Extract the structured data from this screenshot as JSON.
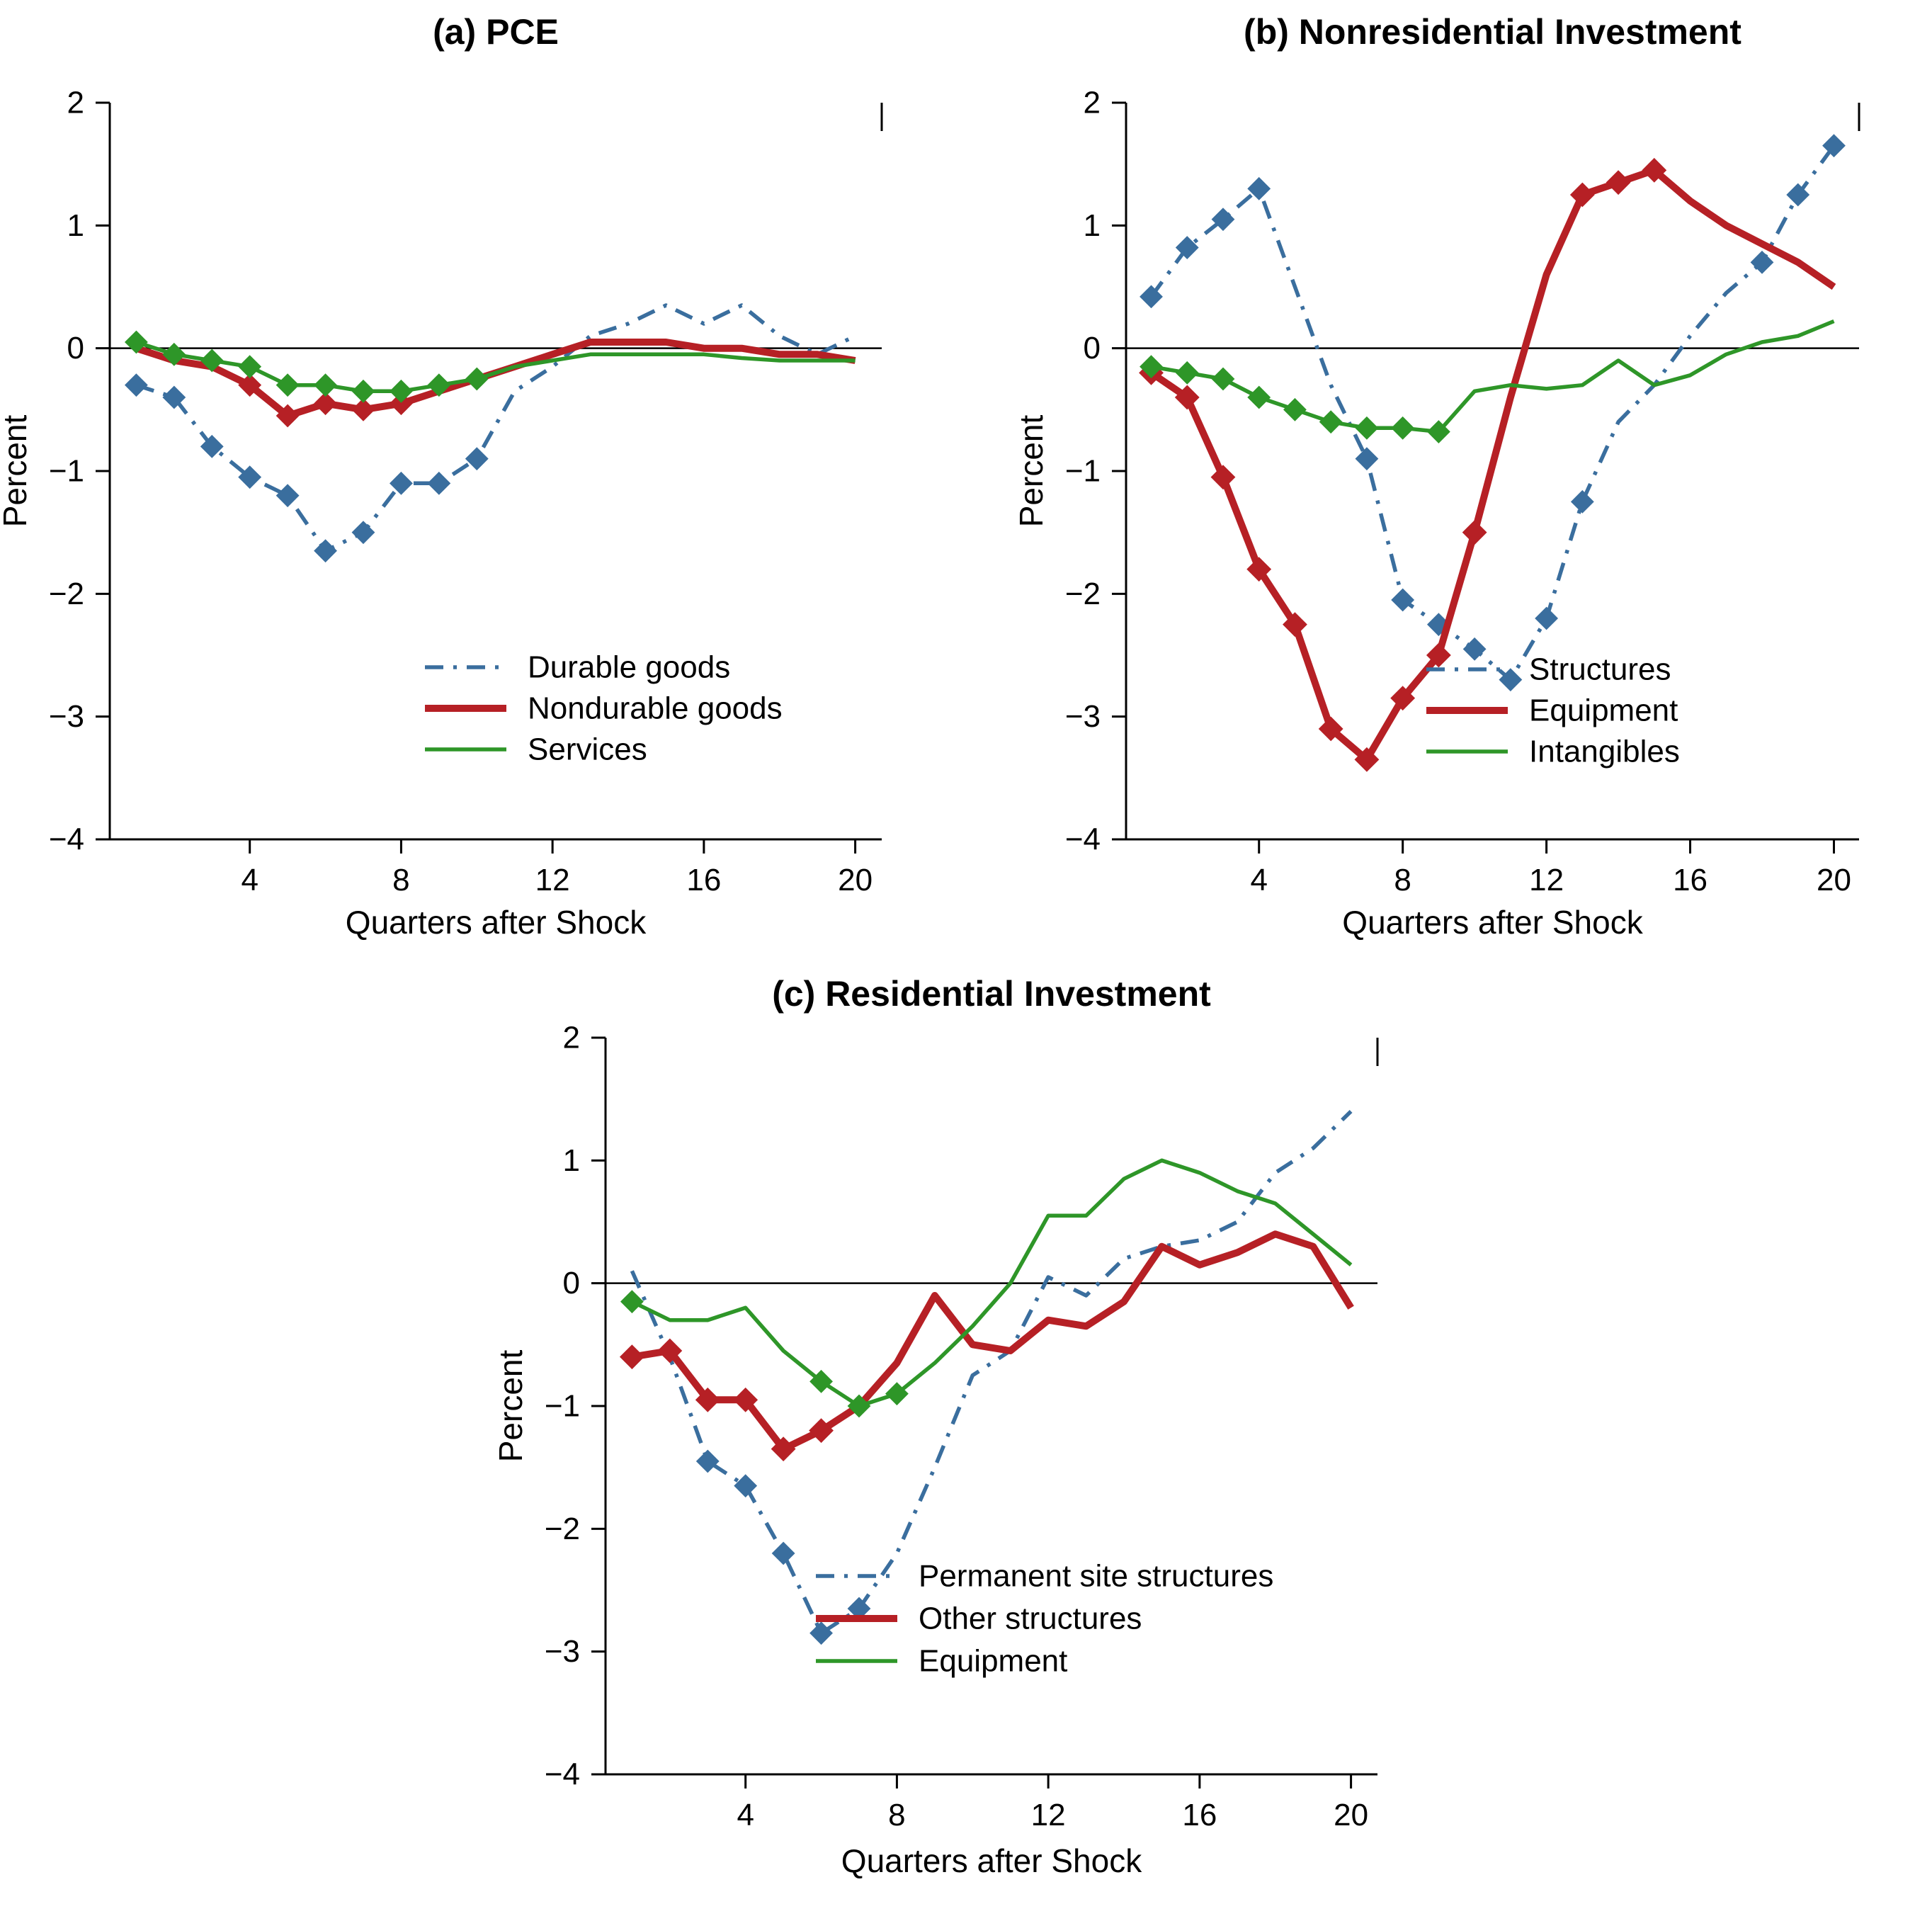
{
  "figure": {
    "background": "#ffffff",
    "colors": {
      "blue": "#3A6E9E",
      "red": "#B62025",
      "green": "#2E9628"
    }
  },
  "chart_data": [
    {
      "id": "a",
      "type": "line",
      "title": "(a) PCE",
      "xlabel": "Quarters after Shock",
      "ylabel": "Percent",
      "xlim": [
        0.3,
        20.7
      ],
      "ylim": [
        -4,
        2
      ],
      "xticks": [
        4,
        8,
        12,
        16,
        20
      ],
      "yticks": [
        -4,
        -3,
        -2,
        -1,
        0,
        1,
        2
      ],
      "x": [
        1,
        2,
        3,
        4,
        5,
        6,
        7,
        8,
        9,
        10,
        11,
        12,
        13,
        14,
        15,
        16,
        17,
        18,
        19,
        20
      ],
      "legend_position": "bottom-right",
      "series": [
        {
          "name": "Durable goods",
          "color": "#3A6E9E",
          "style": "dashdot",
          "width": 5.5,
          "marker_size": 15,
          "markers": [
            1,
            2,
            3,
            4,
            5,
            6,
            7,
            8,
            9,
            10
          ],
          "values": [
            -0.3,
            -0.4,
            -0.8,
            -1.05,
            -1.2,
            -1.65,
            -1.5,
            -1.1,
            -1.1,
            -0.9,
            -0.35,
            -0.15,
            0.1,
            0.2,
            0.35,
            0.2,
            0.35,
            0.1,
            -0.05,
            0.1
          ]
        },
        {
          "name": "Nondurable goods",
          "color": "#B62025",
          "style": "solid",
          "width": 10,
          "marker_size": 15,
          "markers": [
            4,
            5,
            6,
            7,
            8
          ],
          "values": [
            0.0,
            -0.1,
            -0.15,
            -0.3,
            -0.55,
            -0.45,
            -0.5,
            -0.45,
            -0.35,
            -0.25,
            -0.15,
            -0.05,
            0.05,
            0.05,
            0.05,
            0.0,
            0.0,
            -0.05,
            -0.05,
            -0.1
          ]
        },
        {
          "name": "Services",
          "color": "#2E9628",
          "style": "solid",
          "width": 5.5,
          "marker_size": 15,
          "markers": [
            1,
            2,
            3,
            4,
            5,
            6,
            7,
            8,
            9,
            10
          ],
          "values": [
            0.05,
            -0.05,
            -0.1,
            -0.15,
            -0.3,
            -0.3,
            -0.35,
            -0.35,
            -0.3,
            -0.25,
            -0.15,
            -0.1,
            -0.05,
            -0.05,
            -0.05,
            -0.05,
            -0.08,
            -0.1,
            -0.1,
            -0.1
          ]
        }
      ]
    },
    {
      "id": "b",
      "type": "line",
      "title": "(b) Nonresidential Investment",
      "xlabel": "Quarters after Shock",
      "ylabel": "Percent",
      "xlim": [
        0.3,
        20.7
      ],
      "ylim": [
        -4,
        2
      ],
      "xticks": [
        4,
        8,
        12,
        16,
        20
      ],
      "yticks": [
        -4,
        -3,
        -2,
        -1,
        0,
        1,
        2
      ],
      "x": [
        1,
        2,
        3,
        4,
        5,
        6,
        7,
        8,
        9,
        10,
        11,
        12,
        13,
        14,
        15,
        16,
        17,
        18,
        19,
        20
      ],
      "legend_position": "bottom-right",
      "series": [
        {
          "name": "Structures",
          "color": "#3A6E9E",
          "style": "dashdot",
          "width": 5.5,
          "marker_size": 15,
          "markers": [
            1,
            2,
            3,
            4,
            7,
            8,
            9,
            10,
            11,
            12,
            13,
            18,
            19,
            20
          ],
          "values": [
            0.42,
            0.82,
            1.05,
            1.3,
            0.5,
            -0.3,
            -0.9,
            -2.05,
            -2.25,
            -2.45,
            -2.7,
            -2.2,
            -1.25,
            -0.6,
            -0.3,
            0.1,
            0.45,
            0.7,
            1.25,
            1.65
          ]
        },
        {
          "name": "Equipment",
          "color": "#B62025",
          "style": "solid",
          "width": 10,
          "marker_size": 16,
          "markers": [
            1,
            2,
            3,
            4,
            5,
            6,
            7,
            8,
            9,
            10,
            13,
            14,
            15
          ],
          "values": [
            -0.2,
            -0.4,
            -1.05,
            -1.8,
            -2.25,
            -3.1,
            -3.35,
            -2.85,
            -2.5,
            -1.5,
            -0.4,
            0.6,
            1.25,
            1.35,
            1.45,
            1.2,
            1.0,
            0.85,
            0.7,
            0.5
          ]
        },
        {
          "name": "Intangibles",
          "color": "#2E9628",
          "style": "solid",
          "width": 5.5,
          "marker_size": 15,
          "markers": [
            1,
            2,
            3,
            4,
            5,
            6,
            7,
            8,
            9
          ],
          "values": [
            -0.15,
            -0.2,
            -0.25,
            -0.4,
            -0.5,
            -0.6,
            -0.65,
            -0.65,
            -0.68,
            -0.35,
            -0.3,
            -0.33,
            -0.3,
            -0.1,
            -0.3,
            -0.22,
            -0.05,
            0.05,
            0.1,
            0.22
          ]
        }
      ]
    },
    {
      "id": "c",
      "type": "line",
      "title": "(c) Residential Investment",
      "xlabel": "Quarters after Shock",
      "ylabel": "Percent",
      "xlim": [
        0.3,
        20.7
      ],
      "ylim": [
        -4,
        2
      ],
      "xticks": [
        4,
        8,
        12,
        16,
        20
      ],
      "yticks": [
        -4,
        -3,
        -2,
        -1,
        0,
        1,
        2
      ],
      "x": [
        1,
        2,
        3,
        4,
        5,
        6,
        7,
        8,
        9,
        10,
        11,
        12,
        13,
        14,
        15,
        16,
        17,
        18,
        19,
        20
      ],
      "legend_position": "bottom-right",
      "series": [
        {
          "name": "Permanent site structures",
          "color": "#3A6E9E",
          "style": "dashdot",
          "width": 5.5,
          "marker_size": 15,
          "markers": [
            3,
            4,
            5,
            6,
            7
          ],
          "values": [
            0.1,
            -0.6,
            -1.45,
            -1.65,
            -2.2,
            -2.85,
            -2.65,
            -2.2,
            -1.5,
            -0.75,
            -0.55,
            0.05,
            -0.1,
            0.2,
            0.3,
            0.35,
            0.5,
            0.9,
            1.1,
            1.4
          ]
        },
        {
          "name": "Other structures",
          "color": "#B62025",
          "style": "solid",
          "width": 10,
          "marker_size": 16,
          "markers": [
            1,
            2,
            3,
            4,
            5,
            6
          ],
          "values": [
            -0.6,
            -0.55,
            -0.95,
            -0.95,
            -1.35,
            -1.2,
            -1.0,
            -0.65,
            -0.1,
            -0.5,
            -0.55,
            -0.3,
            -0.35,
            -0.15,
            0.3,
            0.15,
            0.25,
            0.4,
            0.3,
            -0.2
          ]
        },
        {
          "name": "Equipment",
          "color": "#2E9628",
          "style": "solid",
          "width": 5.5,
          "marker_size": 15,
          "markers": [
            1,
            6,
            7,
            8
          ],
          "values": [
            -0.15,
            -0.3,
            -0.3,
            -0.2,
            -0.55,
            -0.8,
            -1.0,
            -0.9,
            -0.65,
            -0.35,
            0.0,
            0.55,
            0.55,
            0.85,
            1.0,
            0.9,
            0.75,
            0.65,
            0.4,
            0.15
          ]
        }
      ]
    }
  ]
}
